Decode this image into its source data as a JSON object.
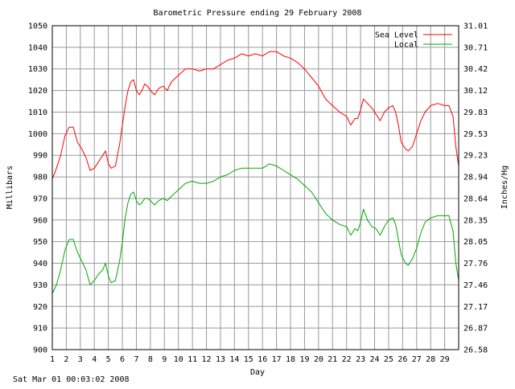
{
  "chart_data": {
    "type": "line",
    "title": "Barometric Pressure ending 29 February 2008",
    "xlabel": "Day",
    "ylabel": "Millibars",
    "ylabel_right": "Inches/Hg",
    "footer": "Sat Mar 01 00:03:02 2008",
    "xlim": [
      1,
      30
    ],
    "ylim": [
      900,
      1050
    ],
    "grid": true,
    "legend_position": "top-right",
    "x_ticks": [
      "1",
      "2",
      "3",
      "4",
      "5",
      "6",
      "7",
      "8",
      "9",
      "10",
      "11",
      "12",
      "13",
      "14",
      "15",
      "16",
      "17",
      "18",
      "19",
      "20",
      "21",
      "22",
      "23",
      "24",
      "25",
      "26",
      "27",
      "28",
      "29"
    ],
    "y_ticks": [
      "900",
      "910",
      "920",
      "930",
      "940",
      "950",
      "960",
      "970",
      "980",
      "990",
      "1000",
      "1010",
      "1020",
      "1030",
      "1040",
      "1050"
    ],
    "y_ticks_right": [
      "26.58",
      "26.87",
      "27.17",
      "27.46",
      "27.76",
      "28.05",
      "28.35",
      "28.64",
      "28.94",
      "29.23",
      "29.53",
      "29.83",
      "30.12",
      "30.42",
      "30.71",
      "31.01"
    ],
    "series": [
      {
        "name": "Sea Level",
        "color": "#ff0000",
        "points": [
          [
            1.0,
            979
          ],
          [
            1.3,
            984
          ],
          [
            1.6,
            990
          ],
          [
            1.9,
            999
          ],
          [
            2.2,
            1003
          ],
          [
            2.5,
            1003
          ],
          [
            2.8,
            996
          ],
          [
            3.1,
            993
          ],
          [
            3.4,
            989
          ],
          [
            3.7,
            983
          ],
          [
            4.0,
            984
          ],
          [
            4.3,
            987
          ],
          [
            4.6,
            990
          ],
          [
            4.8,
            992
          ],
          [
            5.0,
            986
          ],
          [
            5.2,
            984
          ],
          [
            5.5,
            985
          ],
          [
            5.8,
            995
          ],
          [
            6.0,
            1004
          ],
          [
            6.2,
            1013
          ],
          [
            6.4,
            1020
          ],
          [
            6.6,
            1024
          ],
          [
            6.8,
            1025
          ],
          [
            7.0,
            1020
          ],
          [
            7.2,
            1018
          ],
          [
            7.4,
            1020
          ],
          [
            7.6,
            1023
          ],
          [
            7.8,
            1022
          ],
          [
            8.0,
            1020
          ],
          [
            8.3,
            1018
          ],
          [
            8.6,
            1021
          ],
          [
            8.9,
            1022
          ],
          [
            9.2,
            1020
          ],
          [
            9.5,
            1024
          ],
          [
            10.0,
            1027
          ],
          [
            10.5,
            1030
          ],
          [
            11.0,
            1030
          ],
          [
            11.5,
            1029
          ],
          [
            12.0,
            1030
          ],
          [
            12.5,
            1030
          ],
          [
            13.0,
            1032
          ],
          [
            13.5,
            1034
          ],
          [
            14.0,
            1035
          ],
          [
            14.5,
            1037
          ],
          [
            15.0,
            1036
          ],
          [
            15.5,
            1037
          ],
          [
            16.0,
            1036
          ],
          [
            16.5,
            1038
          ],
          [
            17.0,
            1038
          ],
          [
            17.5,
            1036
          ],
          [
            18.0,
            1035
          ],
          [
            18.5,
            1033
          ],
          [
            19.0,
            1030
          ],
          [
            19.5,
            1026
          ],
          [
            20.0,
            1022
          ],
          [
            20.5,
            1016
          ],
          [
            21.0,
            1013
          ],
          [
            21.5,
            1010
          ],
          [
            22.0,
            1008
          ],
          [
            22.3,
            1004
          ],
          [
            22.6,
            1007
          ],
          [
            22.8,
            1007
          ],
          [
            23.0,
            1011
          ],
          [
            23.2,
            1016
          ],
          [
            23.5,
            1014
          ],
          [
            23.8,
            1012
          ],
          [
            24.1,
            1009
          ],
          [
            24.4,
            1006
          ],
          [
            24.7,
            1010
          ],
          [
            25.0,
            1012
          ],
          [
            25.3,
            1013
          ],
          [
            25.5,
            1010
          ],
          [
            25.7,
            1004
          ],
          [
            25.9,
            996
          ],
          [
            26.2,
            993
          ],
          [
            26.4,
            992
          ],
          [
            26.7,
            994
          ],
          [
            27.0,
            1000
          ],
          [
            27.3,
            1006
          ],
          [
            27.6,
            1010
          ],
          [
            28.0,
            1013
          ],
          [
            28.5,
            1014
          ],
          [
            29.0,
            1013
          ],
          [
            29.3,
            1013
          ],
          [
            29.6,
            1008
          ],
          [
            29.8,
            994
          ],
          [
            30.0,
            985
          ]
        ]
      },
      {
        "name": "Local",
        "color": "#00aa00",
        "points": [
          [
            1.0,
            926
          ],
          [
            1.3,
            930
          ],
          [
            1.6,
            937
          ],
          [
            1.9,
            946
          ],
          [
            2.2,
            951
          ],
          [
            2.5,
            951
          ],
          [
            2.8,
            945
          ],
          [
            3.1,
            941
          ],
          [
            3.4,
            937
          ],
          [
            3.7,
            930
          ],
          [
            4.0,
            932
          ],
          [
            4.3,
            935
          ],
          [
            4.6,
            937
          ],
          [
            4.8,
            940
          ],
          [
            5.0,
            934
          ],
          [
            5.2,
            931
          ],
          [
            5.5,
            932
          ],
          [
            5.8,
            941
          ],
          [
            6.0,
            950
          ],
          [
            6.2,
            961
          ],
          [
            6.4,
            968
          ],
          [
            6.6,
            972
          ],
          [
            6.8,
            973
          ],
          [
            7.0,
            969
          ],
          [
            7.2,
            967
          ],
          [
            7.4,
            968
          ],
          [
            7.6,
            970
          ],
          [
            7.8,
            970
          ],
          [
            8.0,
            969
          ],
          [
            8.3,
            967
          ],
          [
            8.6,
            969
          ],
          [
            8.9,
            970
          ],
          [
            9.2,
            969
          ],
          [
            9.5,
            971
          ],
          [
            10.0,
            974
          ],
          [
            10.5,
            977
          ],
          [
            11.0,
            978
          ],
          [
            11.5,
            977
          ],
          [
            12.0,
            977
          ],
          [
            12.5,
            978
          ],
          [
            13.0,
            980
          ],
          [
            13.5,
            981
          ],
          [
            14.0,
            983
          ],
          [
            14.5,
            984
          ],
          [
            15.0,
            984
          ],
          [
            15.5,
            984
          ],
          [
            16.0,
            984
          ],
          [
            16.5,
            986
          ],
          [
            17.0,
            985
          ],
          [
            17.5,
            983
          ],
          [
            18.0,
            981
          ],
          [
            18.5,
            979
          ],
          [
            19.0,
            976
          ],
          [
            19.5,
            973
          ],
          [
            20.0,
            968
          ],
          [
            20.5,
            963
          ],
          [
            21.0,
            960
          ],
          [
            21.5,
            958
          ],
          [
            22.0,
            957
          ],
          [
            22.3,
            953
          ],
          [
            22.6,
            956
          ],
          [
            22.8,
            955
          ],
          [
            23.0,
            959
          ],
          [
            23.2,
            965
          ],
          [
            23.5,
            960
          ],
          [
            23.8,
            957
          ],
          [
            24.1,
            956
          ],
          [
            24.4,
            953
          ],
          [
            24.7,
            957
          ],
          [
            25.0,
            960
          ],
          [
            25.3,
            961
          ],
          [
            25.5,
            958
          ],
          [
            25.7,
            951
          ],
          [
            25.9,
            944
          ],
          [
            26.2,
            940
          ],
          [
            26.4,
            939
          ],
          [
            26.7,
            942
          ],
          [
            27.0,
            947
          ],
          [
            27.3,
            954
          ],
          [
            27.6,
            959
          ],
          [
            28.0,
            961
          ],
          [
            28.5,
            962
          ],
          [
            29.0,
            962
          ],
          [
            29.3,
            962
          ],
          [
            29.6,
            955
          ],
          [
            29.8,
            940
          ],
          [
            30.0,
            932
          ]
        ]
      }
    ]
  }
}
